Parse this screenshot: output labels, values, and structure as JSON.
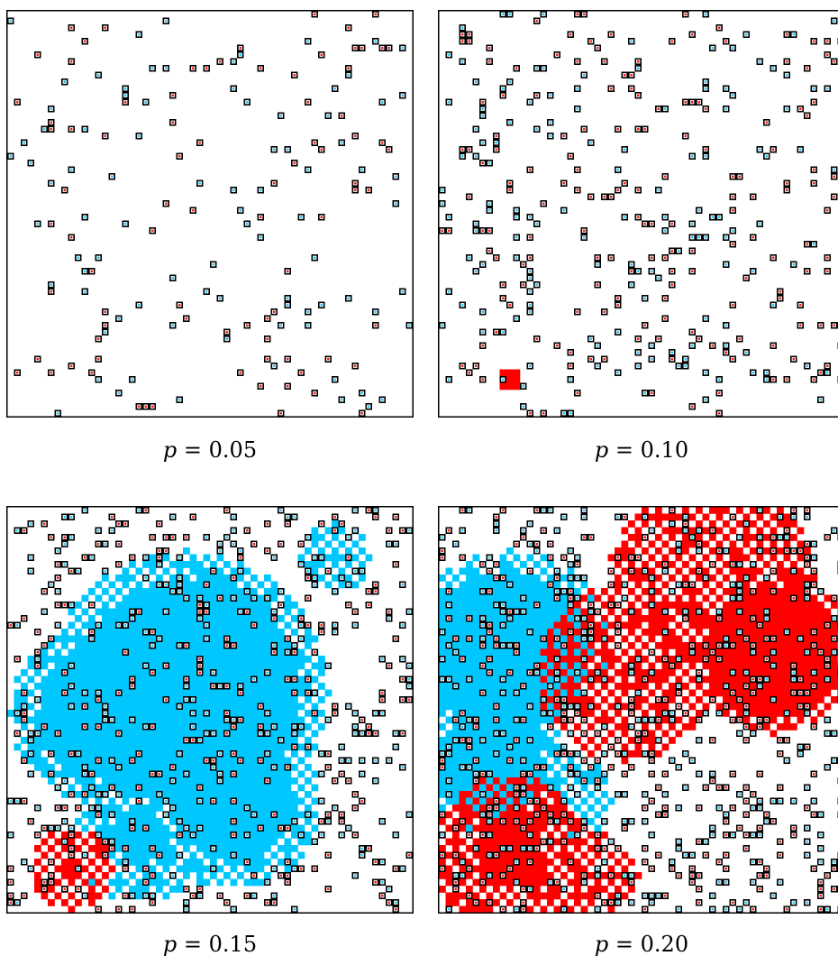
{
  "colors": {
    "blue": "#00c8ff",
    "red": "#ff0000",
    "site_border": "#000000",
    "background": "#ffffff"
  },
  "grid_size": 60,
  "icons": [
    "defect-site-icon",
    "blue-region",
    "red-region"
  ],
  "panels": [
    {
      "var": "p",
      "eq": " = 0.05",
      "p": 0.05,
      "seed": 11,
      "regions": []
    },
    {
      "var": "p",
      "eq": " = 0.10",
      "p": 0.1,
      "seed": 29,
      "regions": [
        {
          "color": "red",
          "cx": 10,
          "cy": 54,
          "r": 1.6,
          "solid": 1.6
        }
      ]
    },
    {
      "var": "p",
      "eq": " = 0.15",
      "p": 0.15,
      "seed": 47,
      "regions": [
        {
          "color": "blue",
          "cx": 26,
          "cy": 27,
          "r": 21,
          "solid": 17
        },
        {
          "color": "blue",
          "cx": 13,
          "cy": 30,
          "r": 13,
          "solid": 9
        },
        {
          "color": "blue",
          "cx": 33,
          "cy": 43,
          "r": 13,
          "solid": 9
        },
        {
          "color": "blue",
          "cx": 19,
          "cy": 48,
          "r": 10,
          "solid": 4
        },
        {
          "color": "blue",
          "cx": 48,
          "cy": 7,
          "r": 5,
          "solid": 0
        },
        {
          "color": "red",
          "cx": 9,
          "cy": 53,
          "r": 6,
          "solid": 2.2
        }
      ]
    },
    {
      "var": "p",
      "eq": " = 0.20",
      "p": 0.2,
      "seed": 83,
      "regions": [
        {
          "color": "blue",
          "cx": 10,
          "cy": 21,
          "r": 15,
          "solid": 12
        },
        {
          "color": "blue",
          "cx": 7,
          "cy": 38,
          "r": 11,
          "solid": 8
        },
        {
          "color": "blue",
          "cx": 17,
          "cy": 43,
          "r": 8,
          "solid": 0
        },
        {
          "color": "red",
          "cx": 40,
          "cy": 12,
          "r": 16,
          "solid": 0
        },
        {
          "color": "red",
          "cx": 49,
          "cy": 21,
          "r": 12,
          "solid": 10
        },
        {
          "color": "red",
          "cx": 27,
          "cy": 24,
          "r": 13,
          "solid": 0
        },
        {
          "color": "red",
          "cx": 10,
          "cy": 51,
          "r": 12,
          "solid": 5
        },
        {
          "color": "red",
          "cx": 22,
          "cy": 54,
          "r": 7,
          "solid": 0
        }
      ]
    }
  ]
}
